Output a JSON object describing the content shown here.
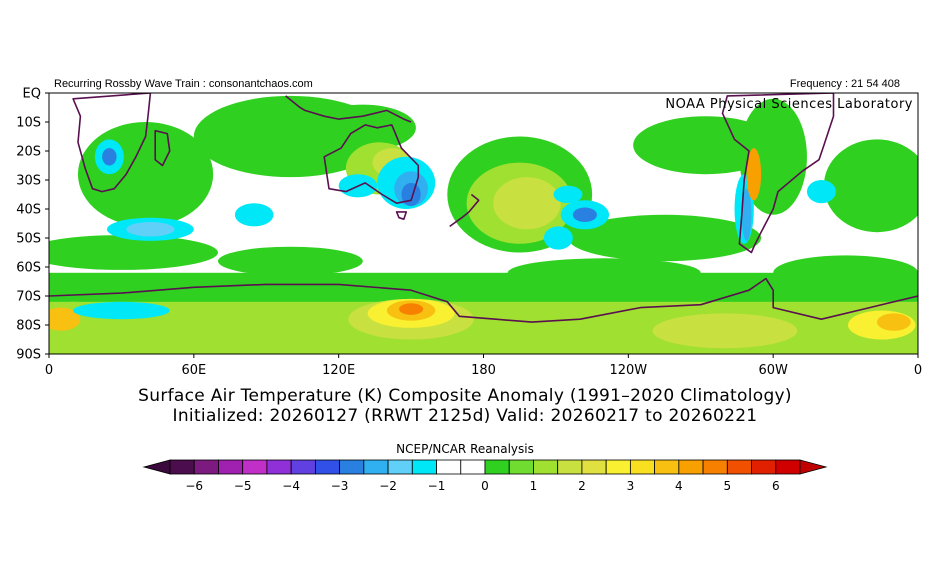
{
  "header": {
    "left_text": "Recurring Rossby Wave Train : consonantchaos.com",
    "right_text": "Frequency : 21 54 408",
    "watermark": "NOAA Physical Sciences Laboratory"
  },
  "map": {
    "lat_labels": [
      "EQ",
      "10S",
      "20S",
      "30S",
      "40S",
      "50S",
      "60S",
      "70S",
      "80S",
      "90S"
    ],
    "lon_labels": [
      "0",
      "60E",
      "120E",
      "180",
      "120W",
      "60W",
      "0"
    ],
    "extent": {
      "lon_min": 0,
      "lon_max": 360,
      "lat_max": 0,
      "lat_min": -90
    }
  },
  "title": {
    "line1": "Surface Air Temperature (K) Composite Anomaly (1991–2020 Climatology)",
    "line2": "Initialized: 20260127 (RRWT 2125d) Valid: 20260217 to 20260221"
  },
  "colorbar": {
    "label": "NCEP/NCAR Reanalysis",
    "tick_labels": [
      "−6",
      "−5",
      "−4",
      "−3",
      "−2",
      "−1",
      "0",
      "1",
      "2",
      "3",
      "4",
      "5",
      "6"
    ],
    "colors": [
      "#4b0d4e",
      "#7d1a7f",
      "#a020b0",
      "#c030c8",
      "#9030d8",
      "#6040e0",
      "#3050e8",
      "#2a80e0",
      "#30b0f0",
      "#60d0f8",
      "#00e8f8",
      "#ffffff",
      "#ffffff",
      "#30d020",
      "#70dc30",
      "#a0e030",
      "#c8e040",
      "#e0e040",
      "#f8f030",
      "#f8e020",
      "#f8c010",
      "#f8a000",
      "#f88000",
      "#f05000",
      "#e02000",
      "#d00000"
    ]
  }
}
